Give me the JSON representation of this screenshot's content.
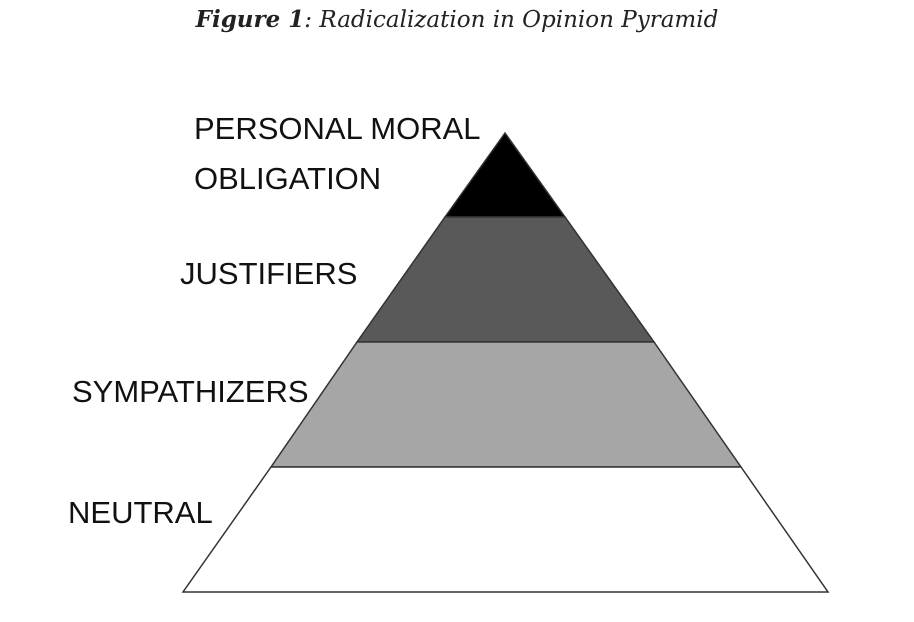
{
  "caption": {
    "figure_number": "Figure 1",
    "separator": ":",
    "title": "Radicalization in Opinion Pyramid"
  },
  "pyramid": {
    "tiers_top_to_bottom": [
      {
        "key": "obligation",
        "label_lines": [
          "PERSONAL MORAL",
          "OBLIGATION"
        ],
        "fill": "#000000"
      },
      {
        "key": "justifiers",
        "label_lines": [
          "JUSTIFIERS"
        ],
        "fill": "#595959"
      },
      {
        "key": "sympathizers",
        "label_lines": [
          "SYMPATHIZERS"
        ],
        "fill": "#a6a6a6"
      },
      {
        "key": "neutral",
        "label_lines": [
          "NEUTRAL"
        ],
        "fill": "#ffffff"
      }
    ],
    "outline_color": "#333333"
  }
}
